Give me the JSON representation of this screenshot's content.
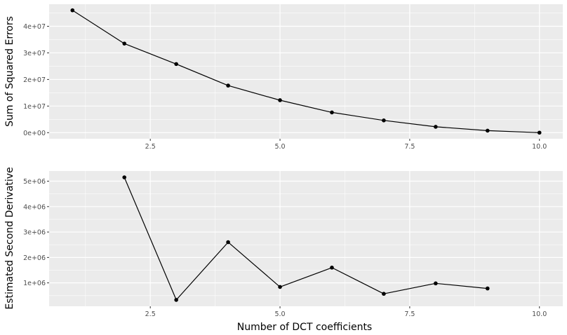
{
  "chart_data": [
    {
      "type": "line",
      "xlabel": "",
      "ylabel": "Sum of Squared Errors",
      "xlim": [
        0.55,
        10.45
      ],
      "ylim": [
        -2300000,
        48300000
      ],
      "x_ticks": [
        2.5,
        5.0,
        7.5,
        10.0
      ],
      "x_tick_labels": [
        "2.5",
        "5.0",
        "7.5",
        "10.0"
      ],
      "y_ticks": [
        0,
        10000000,
        20000000,
        30000000,
        40000000
      ],
      "y_tick_labels": [
        "0e+00",
        "1e+07",
        "2e+07",
        "3e+07",
        "4e+07"
      ],
      "grid": true,
      "series": [
        {
          "x": [
            1,
            2,
            3,
            4,
            5,
            6,
            7,
            8,
            9,
            10
          ],
          "y": [
            46000000,
            33500000,
            25800000,
            17700000,
            12200000,
            7600000,
            4600000,
            2200000,
            750000,
            0
          ]
        }
      ]
    },
    {
      "type": "line",
      "xlabel": "Number of DCT coefficients",
      "ylabel": "Estimated Second Derivative",
      "xlim": [
        0.55,
        10.45
      ],
      "ylim": [
        80000,
        5400000
      ],
      "x_ticks": [
        2.5,
        5.0,
        7.5,
        10.0
      ],
      "x_tick_labels": [
        "2.5",
        "5.0",
        "7.5",
        "10.0"
      ],
      "y_ticks": [
        1000000,
        2000000,
        3000000,
        4000000,
        5000000
      ],
      "y_tick_labels": [
        "1e+06",
        "2e+06",
        "3e+06",
        "4e+06",
        "5e+06"
      ],
      "grid": true,
      "series": [
        {
          "x": [
            2,
            3,
            4,
            5,
            6,
            7,
            8,
            9
          ],
          "y": [
            5150000,
            330000,
            2600000,
            840000,
            1600000,
            570000,
            980000,
            780000
          ]
        }
      ]
    }
  ],
  "colors": {
    "panel_background": "#ebebeb",
    "grid_major": "#ffffff",
    "line": "#000000",
    "point": "#000000",
    "tick_label": "#4d4d4d"
  }
}
